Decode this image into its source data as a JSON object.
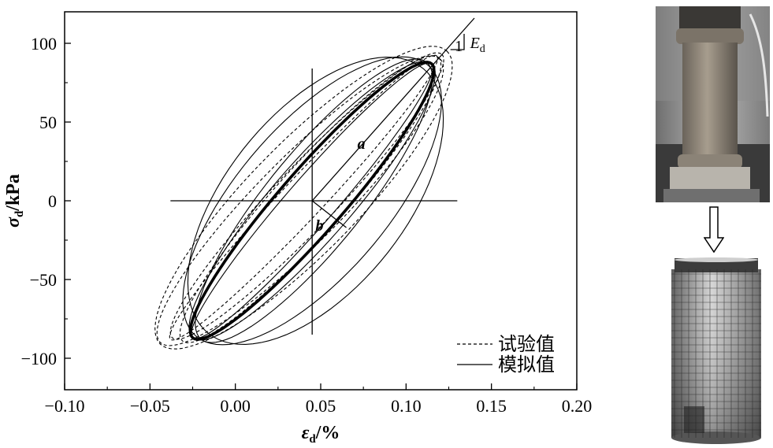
{
  "chart_data": {
    "type": "line",
    "xlim": [
      -0.1,
      0.2
    ],
    "ylim": [
      -120,
      120
    ],
    "xticks": [
      -0.1,
      -0.05,
      0.0,
      0.05,
      0.1,
      0.15,
      0.2
    ],
    "xtick_labels": [
      "−0.10",
      "−0.05",
      "0.00",
      "0.05",
      "0.10",
      "0.15",
      "0.20"
    ],
    "yticks": [
      -100,
      -50,
      0,
      50,
      100
    ],
    "ytick_labels": [
      "−100",
      "−50",
      "0",
      "50",
      "100"
    ],
    "xlabel": {
      "symbol": "ε",
      "sub": "d",
      "unit": "/%"
    },
    "ylabel": {
      "symbol": "σ",
      "sub": "d",
      "unit": "/kPa"
    },
    "grid": false,
    "legend_position": "bottom-right",
    "legend": [
      {
        "label": "试验值",
        "style": "dashed"
      },
      {
        "label": "模拟值",
        "style": "solid"
      }
    ],
    "center": {
      "x": 0.045,
      "y": 0
    },
    "annotations": {
      "a": "a",
      "b": "b",
      "slope_one": "1",
      "modulus_symbol": "E",
      "modulus_sub": "d"
    },
    "series": [
      {
        "style": "solid-bold",
        "loops": [
          {
            "cx": 0.045,
            "cy": 0,
            "xtip": 0.115,
            "ytip": 87,
            "w": 0.0185
          }
        ]
      },
      {
        "style": "solid",
        "loops": [
          {
            "cx": 0.045,
            "cy": 0,
            "xtip": 0.115,
            "ytip": 87,
            "w": 0.014
          },
          {
            "cx": 0.045,
            "cy": 0,
            "xtip": 0.115,
            "ytip": 87,
            "w": 0.023
          },
          {
            "cx": 0.046,
            "cy": 0,
            "xtip": 0.112,
            "ytip": 88,
            "w": 0.028
          },
          {
            "cx": 0.045,
            "cy": 0,
            "xtip": 0.113,
            "ytip": 86,
            "w": 0.044
          },
          {
            "cx": 0.047,
            "cy": 0,
            "xtip": 0.11,
            "ytip": 84,
            "w": 0.052
          }
        ]
      },
      {
        "style": "dashed",
        "loops": [
          {
            "cx": 0.04,
            "cy": 2,
            "xtip": 0.118,
            "ytip": 92,
            "w": 0.012
          },
          {
            "cx": 0.042,
            "cy": 3,
            "xtip": 0.121,
            "ytip": 93,
            "w": 0.018
          },
          {
            "cx": 0.038,
            "cy": 0,
            "xtip": 0.12,
            "ytip": 90,
            "w": 0.025
          },
          {
            "cx": 0.04,
            "cy": 2,
            "xtip": 0.124,
            "ytip": 95,
            "w": 0.032
          },
          {
            "cx": 0.044,
            "cy": 1,
            "xtip": 0.119,
            "ytip": 91,
            "w": 0.02
          }
        ]
      }
    ]
  }
}
